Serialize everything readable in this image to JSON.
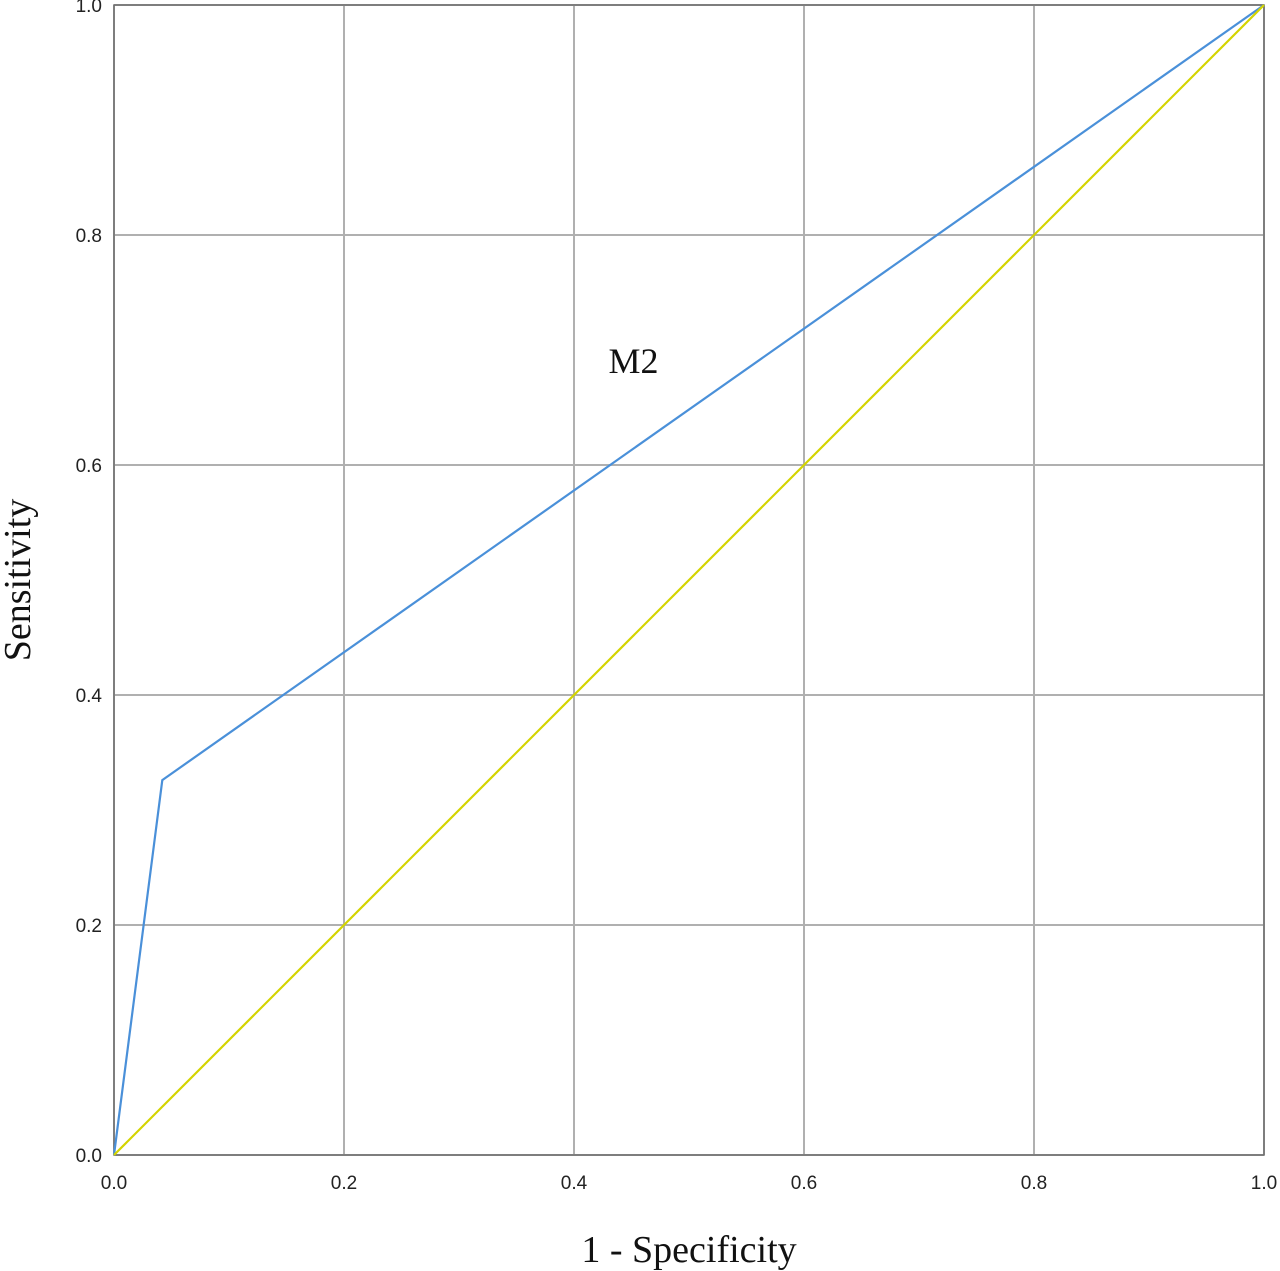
{
  "chart_data": {
    "type": "line",
    "xlabel": "1 - Specificity",
    "ylabel": "Sensitivity",
    "xlim": [
      0,
      1
    ],
    "ylim": [
      0,
      1
    ],
    "xticks": [
      "0.0",
      "0.2",
      "0.4",
      "0.6",
      "0.8",
      "1.0"
    ],
    "yticks": [
      "0.0",
      "0.2",
      "0.4",
      "0.6",
      "0.8",
      "1.0"
    ],
    "grid": true,
    "series": [
      {
        "color": "#4a90d9",
        "points": [
          [
            0.0,
            0.0
          ],
          [
            0.042,
            0.326
          ],
          [
            1.0,
            1.0
          ]
        ]
      },
      {
        "color": "#d4d400",
        "points": [
          [
            0.0,
            0.0
          ],
          [
            1.0,
            1.0
          ]
        ]
      }
    ],
    "annotations": [
      {
        "text": "M2",
        "x": 0.43,
        "y": 0.68
      }
    ]
  }
}
